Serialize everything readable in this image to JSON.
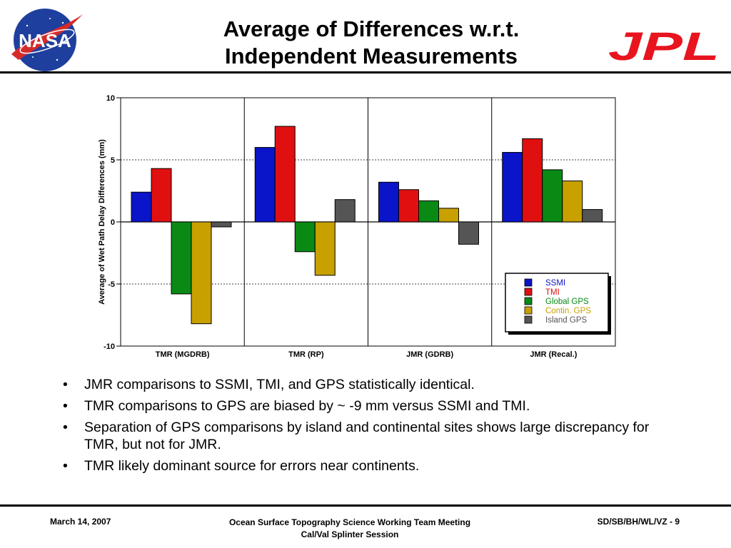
{
  "slide": {
    "title_line1": "Average of Differences w.r.t.",
    "title_line2": "Independent Measurements",
    "nasa_logo_text": "NASA",
    "jpl_logo_text": "JPL"
  },
  "bullets": [
    "JMR comparisons to SSMI, TMI, and GPS statistically identical.",
    "TMR comparisons to GPS are biased by ~ -9 mm versus SSMI and TMI.",
    "Separation of GPS comparisons by island and continental sites shows large discrepancy for TMR, but not for JMR.",
    "TMR likely dominant source for errors near continents."
  ],
  "footer": {
    "date": "March 14, 2007",
    "meeting": "Ocean Surface Topography Science Working Team Meeting",
    "session": "Cal/Val Splinter Session",
    "id": "SD/SB/BH/WL/VZ - 9"
  },
  "colors": {
    "SSMI": "#0a14c8",
    "TMI": "#e01010",
    "Global GPS": "#0a8a14",
    "Contin. GPS": "#c8a000",
    "Island GPS": "#555555",
    "jpl_red": "#e8141e",
    "nasa_blue": "#1f3f9e"
  },
  "chart_data": {
    "type": "bar",
    "title": "",
    "xlabel": "",
    "ylabel": "Average of Wet Path Delay Differences (mm)",
    "ylim": [
      -10,
      10
    ],
    "yticks": [
      10,
      5,
      0,
      -5,
      -10
    ],
    "grid": "dashed horizontal at 5 and -5",
    "legend_position": "bottom-right",
    "categories": [
      "TMR (MGDRB)",
      "TMR (RP)",
      "JMR (GDRB)",
      "JMR (Recal.)"
    ],
    "series": [
      {
        "name": "SSMI",
        "values": [
          2.4,
          6.0,
          3.2,
          5.6
        ]
      },
      {
        "name": "TMI",
        "values": [
          4.3,
          7.7,
          2.6,
          6.7
        ]
      },
      {
        "name": "Global GPS",
        "values": [
          -5.8,
          -2.4,
          1.7,
          4.2
        ]
      },
      {
        "name": "Contin. GPS",
        "values": [
          -8.2,
          -4.3,
          1.1,
          3.3
        ]
      },
      {
        "name": "Island GPS",
        "values": [
          -0.4,
          1.8,
          -1.8,
          1.0
        ]
      }
    ]
  }
}
